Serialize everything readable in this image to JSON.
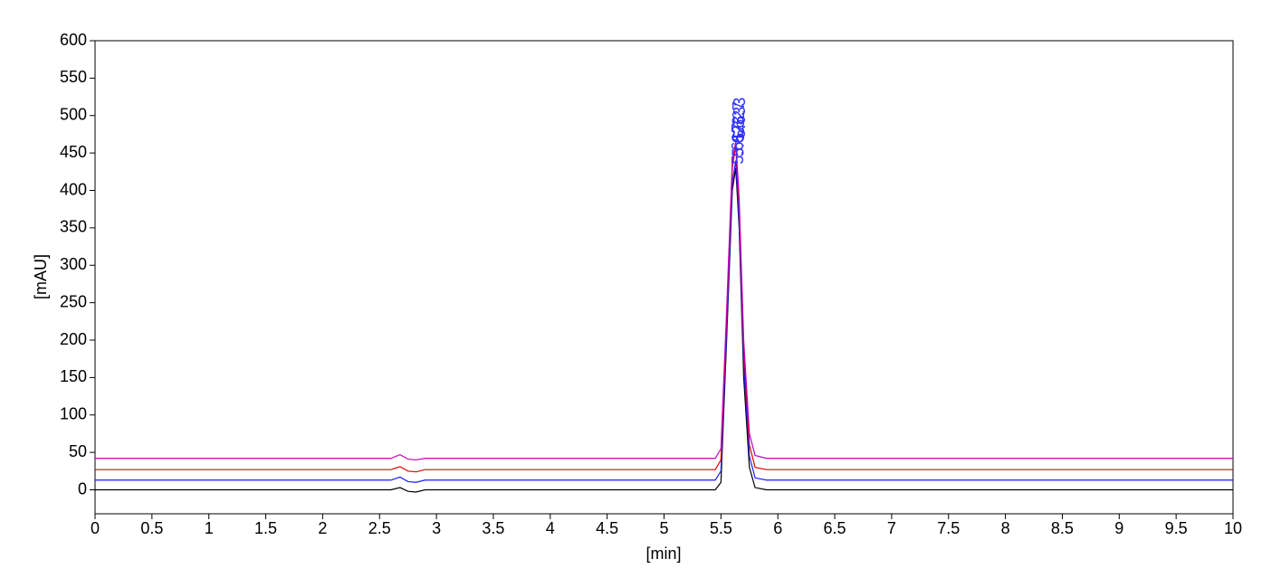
{
  "chart_data": {
    "type": "line",
    "xlabel": "[min]",
    "ylabel": "[mAU]",
    "xlim": [
      0,
      10
    ],
    "ylim": [
      -32,
      600
    ],
    "xticks": [
      0,
      0.5,
      1,
      1.5,
      2,
      2.5,
      3,
      3.5,
      4,
      4.5,
      5,
      5.5,
      6,
      6.5,
      7,
      7.5,
      8,
      8.5,
      9,
      9.5,
      10
    ],
    "yticks": [
      0,
      50,
      100,
      150,
      200,
      250,
      300,
      350,
      400,
      450,
      500,
      550,
      600
    ],
    "grid": false,
    "peak_label_color": "#3030ff",
    "x": [
      0,
      2.6,
      2.68,
      2.75,
      2.82,
      2.9,
      5.45,
      5.5,
      5.55,
      5.6,
      5.63,
      5.66,
      5.7,
      5.75,
      5.8,
      5.9,
      10
    ],
    "series": [
      {
        "color": "#000000",
        "peak": 5.617,
        "values": [
          0,
          0,
          3,
          -2,
          -3,
          0,
          0,
          10,
          200,
          400,
          430,
          350,
          150,
          30,
          3,
          0,
          0
        ]
      },
      {
        "color": "#1a1aff",
        "peak": 5.623,
        "values": [
          13,
          13,
          17,
          11,
          10,
          13,
          13,
          25,
          210,
          410,
          440,
          360,
          170,
          45,
          16,
          13,
          13
        ]
      },
      {
        "color": "#e00000",
        "peak": 5.627,
        "values": [
          27,
          27,
          31,
          25,
          24,
          27,
          27,
          40,
          230,
          430,
          460,
          380,
          190,
          60,
          30,
          27,
          27
        ]
      },
      {
        "color": "#c000c0",
        "peak": 5.633,
        "values": [
          42,
          42,
          47,
          41,
          40,
          42,
          42,
          55,
          240,
          440,
          465,
          390,
          200,
          75,
          46,
          42,
          42
        ]
      }
    ]
  }
}
